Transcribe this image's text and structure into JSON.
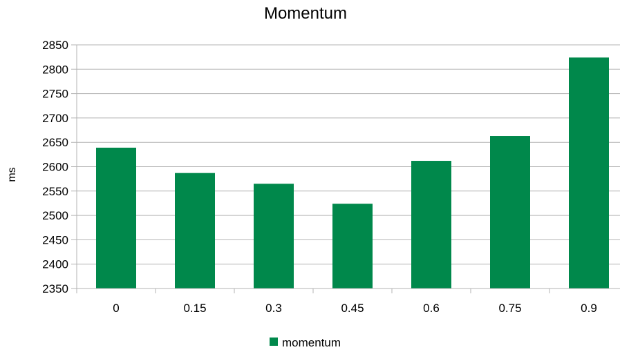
{
  "chart_data": {
    "type": "bar",
    "title": "Momentum",
    "xlabel": "",
    "ylabel": "ms",
    "categories": [
      "0",
      "0.15",
      "0.3",
      "0.45",
      "0.6",
      "0.75",
      "0.9"
    ],
    "series": [
      {
        "name": "momentum",
        "color": "#00884b",
        "values": [
          2639,
          2587,
          2565,
          2524,
          2612,
          2663,
          2824
        ]
      }
    ],
    "ylim": [
      2350,
      2850
    ],
    "yticks": [
      "2350",
      "2400",
      "2450",
      "2500",
      "2550",
      "2600",
      "2650",
      "2700",
      "2750",
      "2800",
      "2850"
    ],
    "grid": true,
    "legend_position": "bottom"
  }
}
